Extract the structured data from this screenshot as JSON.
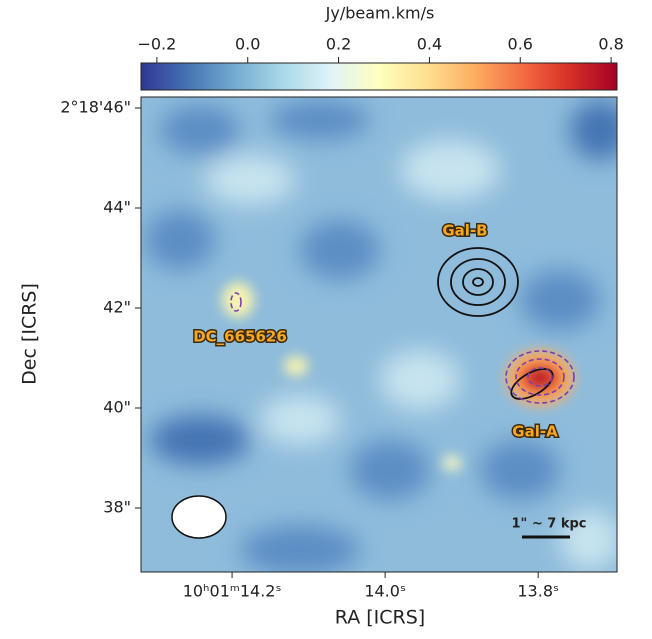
{
  "chart_data": {
    "type": "image",
    "colorbar": {
      "label": "Jy/beam.km/s",
      "lim": [
        -0.235,
        0.813
      ],
      "ticks": [
        {
          "value": -0.2,
          "label": "−0.2"
        },
        {
          "value": 0,
          "label": "0.0"
        },
        {
          "value": 0.2,
          "label": "0.2"
        },
        {
          "value": 0.4,
          "label": "0.4"
        },
        {
          "value": 0.6,
          "label": "0.6"
        },
        {
          "value": 0.8,
          "label": "0.8"
        }
      ]
    },
    "x_label": "RA [ICRS]",
    "y_label": "Dec [ICRS]",
    "xlim": [
      14.319,
      13.697
    ],
    "ylim": [
      36.72,
      46.22
    ],
    "xticks": [
      {
        "value": 14.2,
        "label": "10ʰ01ᵐ14.2ˢ"
      },
      {
        "value": 14.0,
        "label": "14.0ˢ"
      },
      {
        "value": 13.8,
        "label": "13.8ˢ"
      }
    ],
    "yticks": [
      {
        "value": 46,
        "label": "2°18'46\""
      },
      {
        "value": 44,
        "label": "44\""
      },
      {
        "value": 42,
        "label": "42\""
      },
      {
        "value": 40,
        "label": "40\""
      },
      {
        "value": 38,
        "label": "38\""
      }
    ],
    "annotations": [
      "Gal-B",
      "DC_665626",
      "Gal-A"
    ],
    "scale_bar": "1\" ~ 7 kpc"
  }
}
